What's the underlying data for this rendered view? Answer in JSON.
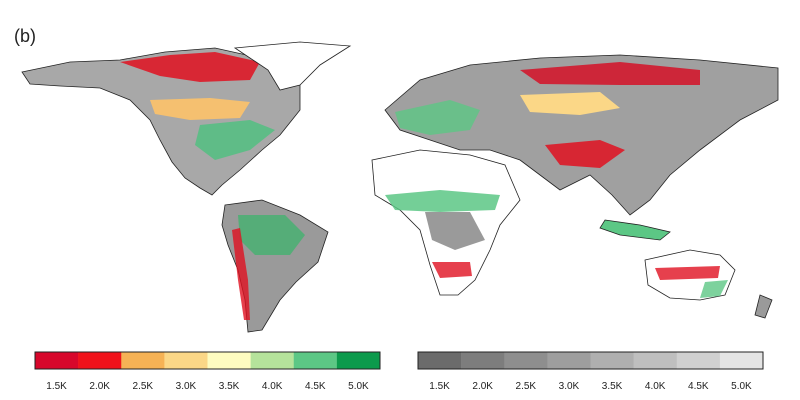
{
  "panel_label": "(b)",
  "colorbars": [
    {
      "colors": [
        "#d7072b",
        "#f0121a",
        "#f6b255",
        "#fbd787",
        "#fefcc0",
        "#b5e39b",
        "#5cc785",
        "#0c9a4c"
      ],
      "ticks": [
        {
          "value": 1.5,
          "label": "1.5K"
        },
        {
          "value": 2.0,
          "label": "2.0K"
        },
        {
          "value": 2.5,
          "label": "2.5K"
        },
        {
          "value": 3.0,
          "label": "3.0K"
        },
        {
          "value": 3.5,
          "label": "3.5K"
        },
        {
          "value": 4.0,
          "label": "4.0K"
        },
        {
          "value": 4.5,
          "label": "4.5K"
        },
        {
          "value": 5.0,
          "label": "5.0K"
        }
      ]
    },
    {
      "colors": [
        "#6b6b6b",
        "#7d7d7d",
        "#8e8e8e",
        "#9e9e9e",
        "#afafaf",
        "#bfbfbf",
        "#d0d0d0",
        "#e4e4e4"
      ],
      "ticks": [
        {
          "value": 1.5,
          "label": "1.5K"
        },
        {
          "value": 2.0,
          "label": "2.0K"
        },
        {
          "value": 2.5,
          "label": "2.5K"
        },
        {
          "value": 3.0,
          "label": "3.0K"
        },
        {
          "value": 3.5,
          "label": "3.5K"
        },
        {
          "value": 4.0,
          "label": "4.0K"
        },
        {
          "value": 4.5,
          "label": "4.5K"
        },
        {
          "value": 5.0,
          "label": "5.0K"
        }
      ]
    }
  ]
}
